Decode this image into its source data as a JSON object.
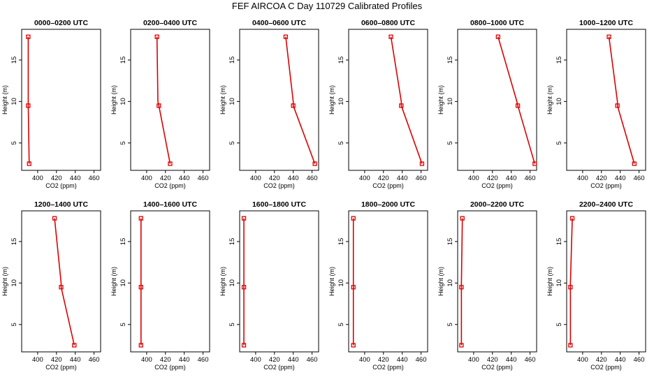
{
  "title": "FEF AIRCOA C  Day 110729  Calibrated Profiles",
  "colors": {
    "series": "#dd0000",
    "frame": "#000000",
    "background": "#ffffff"
  },
  "chart_data": [
    {
      "type": "line",
      "title": "0000–0200 UTC",
      "xlabel": "CO2 (ppm)",
      "ylabel": "Height (m)",
      "xlim": [
        383,
        467
      ],
      "ylim": [
        1.7,
        18.7
      ],
      "xticks": [
        400,
        420,
        440,
        460
      ],
      "yticks": [
        5,
        10,
        15
      ],
      "series": [
        {
          "x": [
            391,
            390,
            390,
            390
          ],
          "y": [
            2.5,
            9.5,
            10,
            17.8
          ]
        }
      ]
    },
    {
      "type": "line",
      "title": "0200–0400 UTC",
      "xlabel": "CO2 (ppm)",
      "ylabel": "Height (m)",
      "xlim": [
        383,
        467
      ],
      "ylim": [
        1.7,
        18.7
      ],
      "xticks": [
        400,
        420,
        440,
        460
      ],
      "yticks": [
        5,
        10,
        15
      ],
      "series": [
        {
          "x": [
            425,
            413,
            412,
            411
          ],
          "y": [
            2.5,
            9.5,
            10,
            17.8
          ]
        }
      ]
    },
    {
      "type": "line",
      "title": "0400–0600 UTC",
      "xlabel": "CO2 (ppm)",
      "ylabel": "Height (m)",
      "xlim": [
        383,
        467
      ],
      "ylim": [
        1.7,
        18.7
      ],
      "xticks": [
        400,
        420,
        440,
        460
      ],
      "yticks": [
        5,
        10,
        15
      ],
      "series": [
        {
          "x": [
            463,
            440,
            440,
            432
          ],
          "y": [
            2.5,
            9.5,
            10,
            17.8
          ]
        }
      ]
    },
    {
      "type": "line",
      "title": "0600–0800 UTC",
      "xlabel": "CO2 (ppm)",
      "ylabel": "Height (m)",
      "xlim": [
        383,
        467
      ],
      "ylim": [
        1.7,
        18.7
      ],
      "xticks": [
        400,
        420,
        440,
        460
      ],
      "yticks": [
        5,
        10,
        15
      ],
      "series": [
        {
          "x": [
            461,
            439,
            439,
            428
          ],
          "y": [
            2.5,
            9.5,
            10,
            17.8
          ]
        }
      ]
    },
    {
      "type": "line",
      "title": "0800–1000 UTC",
      "xlabel": "CO2 (ppm)",
      "ylabel": "Height (m)",
      "xlim": [
        383,
        467
      ],
      "ylim": [
        1.7,
        18.7
      ],
      "xticks": [
        400,
        420,
        440,
        460
      ],
      "yticks": [
        5,
        10,
        15
      ],
      "series": [
        {
          "x": [
            465,
            447,
            446,
            426
          ],
          "y": [
            2.5,
            9.5,
            10,
            17.8
          ]
        }
      ]
    },
    {
      "type": "line",
      "title": "1000–1200 UTC",
      "xlabel": "CO2 (ppm)",
      "ylabel": "Height (m)",
      "xlim": [
        383,
        467
      ],
      "ylim": [
        1.7,
        18.7
      ],
      "xticks": [
        400,
        420,
        440,
        460
      ],
      "yticks": [
        5,
        10,
        15
      ],
      "series": [
        {
          "x": [
            455,
            437,
            437,
            428
          ],
          "y": [
            2.5,
            9.5,
            10,
            17.8
          ]
        }
      ]
    },
    {
      "type": "line",
      "title": "1200–1400 UTC",
      "xlabel": "CO2 (ppm)",
      "ylabel": "Height (m)",
      "xlim": [
        383,
        467
      ],
      "ylim": [
        1.7,
        18.7
      ],
      "xticks": [
        400,
        420,
        440,
        460
      ],
      "yticks": [
        5,
        10,
        15
      ],
      "series": [
        {
          "x": [
            439,
            425,
            425,
            418
          ],
          "y": [
            2.5,
            9.5,
            10,
            17.8
          ]
        }
      ]
    },
    {
      "type": "line",
      "title": "1400–1600 UTC",
      "xlabel": "CO2 (ppm)",
      "ylabel": "Height (m)",
      "xlim": [
        383,
        467
      ],
      "ylim": [
        1.7,
        18.7
      ],
      "xticks": [
        400,
        420,
        440,
        460
      ],
      "yticks": [
        5,
        10,
        15
      ],
      "series": [
        {
          "x": [
            394,
            394,
            394,
            394
          ],
          "y": [
            2.5,
            9.5,
            10,
            17.8
          ]
        }
      ]
    },
    {
      "type": "line",
      "title": "1600–1800 UTC",
      "xlabel": "CO2 (ppm)",
      "ylabel": "Height (m)",
      "xlim": [
        383,
        467
      ],
      "ylim": [
        1.7,
        18.7
      ],
      "xticks": [
        400,
        420,
        440,
        460
      ],
      "yticks": [
        5,
        10,
        15
      ],
      "series": [
        {
          "x": [
            387.5,
            387.5,
            387.5,
            387.5
          ],
          "y": [
            2.5,
            9.5,
            10,
            17.8
          ]
        }
      ]
    },
    {
      "type": "line",
      "title": "1800–2000 UTC",
      "xlabel": "CO2 (ppm)",
      "ylabel": "Height (m)",
      "xlim": [
        383,
        467
      ],
      "ylim": [
        1.7,
        18.7
      ],
      "xticks": [
        400,
        420,
        440,
        460
      ],
      "yticks": [
        5,
        10,
        15
      ],
      "series": [
        {
          "x": [
            388,
            388,
            388,
            388
          ],
          "y": [
            2.5,
            9.5,
            10,
            17.8
          ]
        }
      ]
    },
    {
      "type": "line",
      "title": "2000–2200 UTC",
      "xlabel": "CO2 (ppm)",
      "ylabel": "Height (m)",
      "xlim": [
        383,
        467
      ],
      "ylim": [
        1.7,
        18.7
      ],
      "xticks": [
        400,
        420,
        440,
        460
      ],
      "yticks": [
        5,
        10,
        15
      ],
      "series": [
        {
          "x": [
            387,
            387,
            387,
            388
          ],
          "y": [
            2.5,
            9.5,
            10,
            17.8
          ]
        }
      ]
    },
    {
      "type": "line",
      "title": "2200–2400 UTC",
      "xlabel": "CO2 (ppm)",
      "ylabel": "Height (m)",
      "xlim": [
        383,
        467
      ],
      "ylim": [
        1.7,
        18.7
      ],
      "xticks": [
        400,
        420,
        440,
        460
      ],
      "yticks": [
        5,
        10,
        15
      ],
      "series": [
        {
          "x": [
            387,
            387,
            387,
            389
          ],
          "y": [
            2.5,
            9.5,
            10,
            17.8
          ]
        }
      ]
    }
  ]
}
